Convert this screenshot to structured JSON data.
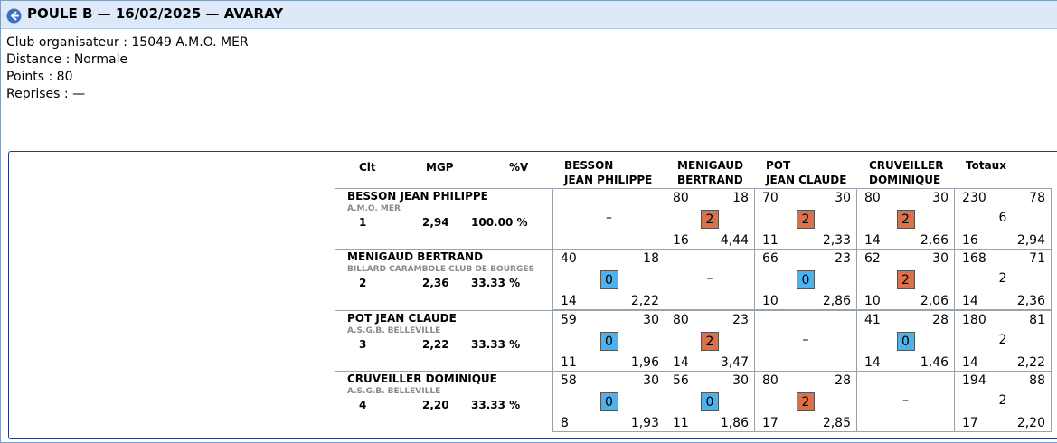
{
  "header": {
    "title": "POULE B — 16/02/2025 — AVARAY"
  },
  "info": {
    "club": "Club organisateur : 15049 A.M.O. MER",
    "distance": "Distance : Normale",
    "points": "Points : 80",
    "reprises": "Reprises : —"
  },
  "columns": {
    "clt": "Clt",
    "mgp": "MGP",
    "pv": "%V",
    "opp1": [
      "BESSON",
      "JEAN PHILIPPE"
    ],
    "opp2": [
      "MENIGAUD",
      "BERTRAND"
    ],
    "opp3": [
      "POT",
      "JEAN CLAUDE"
    ],
    "opp4": [
      "CRUVEILLER",
      "DOMINIQUE"
    ],
    "totals": "Totaux"
  },
  "colors": {
    "win": "#d9714a",
    "loss": "#4db2ec"
  },
  "players": [
    {
      "name": "BESSON JEAN PHILIPPE",
      "club": "A.M.O. MER",
      "clt": "1",
      "mgp": "2,94",
      "pv": "100.00 %",
      "results": [
        null,
        {
          "tl": "80",
          "tr": "18",
          "pts": "2",
          "bl": "16",
          "br": "4,44"
        },
        {
          "tl": "70",
          "tr": "30",
          "pts": "2",
          "bl": "11",
          "br": "2,33"
        },
        {
          "tl": "80",
          "tr": "30",
          "pts": "2",
          "bl": "14",
          "br": "2,66"
        }
      ],
      "totals": {
        "tl": "230",
        "tr": "78",
        "pts": "6",
        "bl": "16",
        "br": "2,94"
      }
    },
    {
      "name": "MENIGAUD BERTRAND",
      "club": "BILLARD CARAMBOLE CLUB DE BOURGES",
      "clt": "2",
      "mgp": "2,36",
      "pv": "33.33 %",
      "results": [
        {
          "tl": "40",
          "tr": "18",
          "pts": "0",
          "bl": "14",
          "br": "2,22"
        },
        null,
        {
          "tl": "66",
          "tr": "23",
          "pts": "0",
          "bl": "10",
          "br": "2,86"
        },
        {
          "tl": "62",
          "tr": "30",
          "pts": "2",
          "bl": "10",
          "br": "2,06"
        }
      ],
      "totals": {
        "tl": "168",
        "tr": "71",
        "pts": "2",
        "bl": "14",
        "br": "2,36"
      }
    },
    {
      "name": "POT JEAN CLAUDE",
      "club": "A.S.G.B. BELLEVILLE",
      "clt": "3",
      "mgp": "2,22",
      "pv": "33.33 %",
      "results": [
        {
          "tl": "59",
          "tr": "30",
          "pts": "0",
          "bl": "11",
          "br": "1,96"
        },
        {
          "tl": "80",
          "tr": "23",
          "pts": "2",
          "bl": "14",
          "br": "3,47"
        },
        null,
        {
          "tl": "41",
          "tr": "28",
          "pts": "0",
          "bl": "14",
          "br": "1,46"
        }
      ],
      "totals": {
        "tl": "180",
        "tr": "81",
        "pts": "2",
        "bl": "14",
        "br": "2,22"
      }
    },
    {
      "name": "CRUVEILLER DOMINIQUE",
      "club": "A.S.G.B. BELLEVILLE",
      "clt": "4",
      "mgp": "2,20",
      "pv": "33.33 %",
      "results": [
        {
          "tl": "58",
          "tr": "30",
          "pts": "0",
          "bl": "8",
          "br": "1,93"
        },
        {
          "tl": "56",
          "tr": "30",
          "pts": "0",
          "bl": "11",
          "br": "1,86"
        },
        {
          "tl": "80",
          "tr": "28",
          "pts": "2",
          "bl": "17",
          "br": "2,85"
        },
        null
      ],
      "totals": {
        "tl": "194",
        "tr": "88",
        "pts": "2",
        "bl": "17",
        "br": "2,20"
      }
    }
  ],
  "empty_cell": "–"
}
